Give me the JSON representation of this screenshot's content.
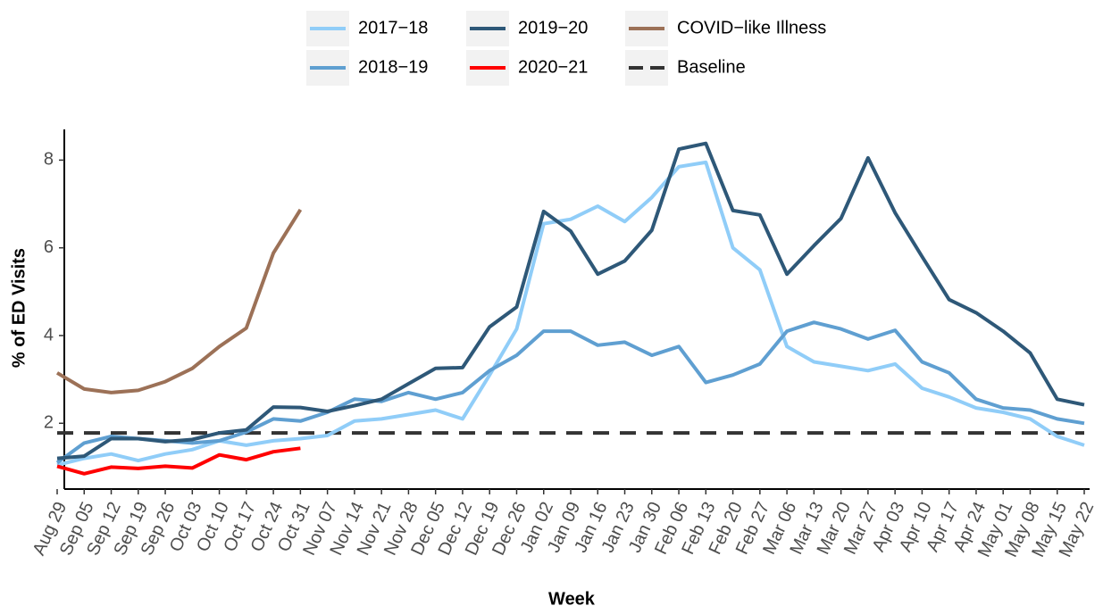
{
  "chart_data": {
    "type": "line",
    "x_label": "Week",
    "y_label": "% of ED Visits",
    "categories": [
      "Aug 29",
      "Sep 05",
      "Sep 12",
      "Sep 19",
      "Sep 26",
      "Oct 03",
      "Oct 10",
      "Oct 17",
      "Oct 24",
      "Oct 31",
      "Nov 07",
      "Nov 14",
      "Nov 21",
      "Nov 28",
      "Dec 05",
      "Dec 12",
      "Dec 19",
      "Dec 26",
      "Jan 02",
      "Jan 09",
      "Jan 16",
      "Jan 23",
      "Jan 30",
      "Feb 06",
      "Feb 13",
      "Feb 20",
      "Feb 27",
      "Mar 06",
      "Mar 13",
      "Mar 20",
      "Mar 27",
      "Apr 03",
      "Apr 10",
      "Apr 17",
      "Apr 24",
      "May 01",
      "May 08",
      "May 15",
      "May 22"
    ],
    "ylim": [
      0.5,
      8.7
    ],
    "yticks": [
      2,
      4,
      6,
      8
    ],
    "grid": false,
    "series": [
      {
        "name": "2017−18",
        "color": "#90cdf8",
        "values": [
          1.05,
          1.2,
          1.3,
          1.15,
          1.3,
          1.4,
          1.6,
          1.5,
          1.6,
          1.65,
          1.72,
          2.05,
          2.1,
          2.2,
          2.3,
          2.1,
          3.1,
          4.15,
          6.55,
          6.65,
          6.95,
          6.6,
          7.15,
          7.85,
          7.95,
          6.0,
          5.5,
          3.75,
          3.4,
          3.3,
          3.2,
          3.35,
          2.8,
          2.6,
          2.35,
          2.25,
          2.1,
          1.7,
          1.5
        ]
      },
      {
        "name": "2018−19",
        "color": "#5f9fd1",
        "values": [
          1.1,
          1.55,
          1.7,
          1.65,
          1.6,
          1.55,
          1.6,
          1.8,
          2.1,
          2.05,
          2.25,
          2.55,
          2.5,
          2.7,
          2.55,
          2.7,
          3.2,
          3.55,
          4.1,
          4.1,
          3.78,
          3.85,
          3.55,
          3.75,
          2.93,
          3.1,
          3.35,
          4.1,
          4.3,
          4.15,
          3.92,
          4.12,
          3.4,
          3.15,
          2.55,
          2.35,
          2.3,
          2.1,
          2.0
        ]
      },
      {
        "name": "2019−20",
        "color": "#2e5878",
        "values": [
          1.2,
          1.25,
          1.65,
          1.65,
          1.58,
          1.63,
          1.78,
          1.85,
          2.37,
          2.36,
          2.27,
          2.4,
          2.55,
          2.9,
          3.25,
          3.27,
          4.2,
          4.65,
          6.83,
          6.38,
          5.4,
          5.7,
          6.4,
          8.25,
          8.38,
          6.85,
          6.75,
          5.4,
          6.05,
          6.67,
          8.05,
          6.8,
          5.8,
          4.82,
          4.52,
          4.1,
          3.6,
          2.55,
          2.42
        ]
      },
      {
        "name": "2020−21",
        "color": "#ff0000",
        "values": [
          1.02,
          0.85,
          1.0,
          0.97,
          1.02,
          0.98,
          1.28,
          1.17,
          1.35,
          1.43,
          null,
          null,
          null,
          null,
          null,
          null,
          null,
          null,
          null,
          null,
          null,
          null,
          null,
          null,
          null,
          null,
          null,
          null,
          null,
          null,
          null,
          null,
          null,
          null,
          null,
          null,
          null,
          null,
          null
        ]
      },
      {
        "name": "COVID−like Illness",
        "color": "#9c7157",
        "values": [
          3.15,
          2.78,
          2.7,
          2.75,
          2.95,
          3.25,
          3.75,
          4.17,
          5.88,
          6.87,
          null,
          null,
          null,
          null,
          null,
          null,
          null,
          null,
          null,
          null,
          null,
          null,
          null,
          null,
          null,
          null,
          null,
          null,
          null,
          null,
          null,
          null,
          null,
          null,
          null,
          null,
          null,
          null,
          null
        ]
      }
    ],
    "baseline": {
      "name": "Baseline",
      "value": 1.78,
      "color": "#333333"
    }
  }
}
